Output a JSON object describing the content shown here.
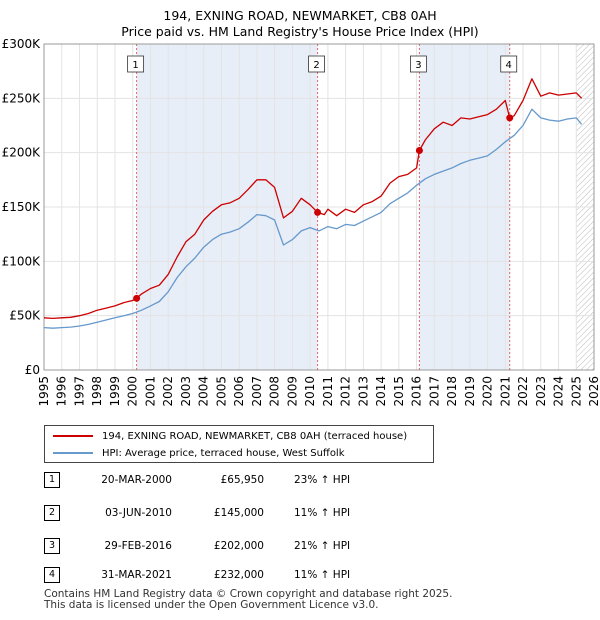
{
  "title_line1": "194, EXNING ROAD, NEWMARKET, CB8 0AH",
  "title_line2": "Price paid vs. HM Land Registry's House Price Index (HPI)",
  "legend": {
    "property": "194, EXNING ROAD, NEWMARKET, CB8 0AH (terraced house)",
    "hpi": "HPI: Average price, terraced house, West Suffolk"
  },
  "colors": {
    "property": "#cc0000",
    "hpi": "#6699cc",
    "shade": "#e8eef8",
    "sale_marker": "#cc0000"
  },
  "sales": [
    {
      "num": "1",
      "date": "20-MAR-2000",
      "price": "£65,950",
      "hpi": "23% ↑ HPI"
    },
    {
      "num": "2",
      "date": "03-JUN-2010",
      "price": "£145,000",
      "hpi": "11% ↑ HPI"
    },
    {
      "num": "3",
      "date": "29-FEB-2016",
      "price": "£202,000",
      "hpi": "21% ↑ HPI"
    },
    {
      "num": "4",
      "date": "31-MAR-2021",
      "price": "£232,000",
      "hpi": "11% ↑ HPI"
    }
  ],
  "footer_line1": "Contains HM Land Registry data © Crown copyright and database right 2025.",
  "footer_line2": "This data is licensed under the Open Government Licence v3.0.",
  "chart_data": {
    "type": "line",
    "xlabel": "",
    "ylabel": "",
    "xlim": [
      1995,
      2026
    ],
    "ylim": [
      0,
      300000
    ],
    "yticks": [
      0,
      50000,
      100000,
      150000,
      200000,
      250000,
      300000
    ],
    "ytick_labels": [
      "£0",
      "£50K",
      "£100K",
      "£150K",
      "£200K",
      "£250K",
      "£300K"
    ],
    "xticks": [
      1995,
      1996,
      1997,
      1998,
      1999,
      2000,
      2001,
      2002,
      2003,
      2004,
      2005,
      2006,
      2007,
      2008,
      2009,
      2010,
      2011,
      2012,
      2013,
      2014,
      2015,
      2016,
      2017,
      2018,
      2019,
      2020,
      2021,
      2022,
      2023,
      2024,
      2025,
      2026
    ],
    "grid": true,
    "legend_position": "below chart",
    "shaded_ranges": [
      [
        2000.22,
        2010.42
      ],
      [
        2016.16,
        2021.25
      ]
    ],
    "future_hatch_from": 2025.0,
    "sale_markers": [
      {
        "label": "1",
        "x": 2000.22,
        "y": 65950
      },
      {
        "label": "2",
        "x": 2010.42,
        "y": 145000
      },
      {
        "label": "3",
        "x": 2016.16,
        "y": 202000
      },
      {
        "label": "4",
        "x": 2021.25,
        "y": 232000
      }
    ],
    "series": [
      {
        "name": "194, EXNING ROAD, NEWMARKET, CB8 0AH (terraced house)",
        "x": [
          1995.0,
          1995.5,
          1996.0,
          1996.5,
          1997.0,
          1997.5,
          1998.0,
          1998.5,
          1999.0,
          1999.5,
          2000.0,
          2000.22,
          2000.5,
          2001.0,
          2001.5,
          2002.0,
          2002.5,
          2003.0,
          2003.5,
          2004.0,
          2004.5,
          2005.0,
          2005.5,
          2006.0,
          2006.5,
          2007.0,
          2007.5,
          2008.0,
          2008.5,
          2009.0,
          2009.5,
          2010.0,
          2010.42,
          2010.8,
          2011.0,
          2011.5,
          2012.0,
          2012.5,
          2013.0,
          2013.5,
          2014.0,
          2014.5,
          2015.0,
          2015.5,
          2016.0,
          2016.16,
          2016.5,
          2017.0,
          2017.5,
          2018.0,
          2018.5,
          2019.0,
          2019.5,
          2020.0,
          2020.5,
          2021.0,
          2021.25,
          2021.5,
          2022.0,
          2022.5,
          2023.0,
          2023.5,
          2024.0,
          2024.5,
          2025.0,
          2025.3
        ],
        "values": [
          48000,
          47500,
          48000,
          48500,
          50000,
          52000,
          55000,
          57000,
          59000,
          62000,
          64000,
          65950,
          70000,
          75000,
          78000,
          88000,
          104000,
          118000,
          125000,
          138000,
          146000,
          152000,
          154000,
          158000,
          166000,
          175000,
          175000,
          168000,
          140000,
          146000,
          158000,
          152000,
          145000,
          143000,
          148000,
          142000,
          148000,
          145000,
          152000,
          155000,
          160000,
          172000,
          178000,
          180000,
          186000,
          202000,
          212000,
          222000,
          228000,
          225000,
          232000,
          231000,
          233000,
          235000,
          240000,
          248000,
          232000,
          234000,
          248000,
          268000,
          252000,
          255000,
          253000,
          254000,
          255000,
          250000
        ]
      },
      {
        "name": "HPI: Average price, terraced house, West Suffolk",
        "x": [
          1995.0,
          1995.5,
          1996.0,
          1996.5,
          1997.0,
          1997.5,
          1998.0,
          1998.5,
          1999.0,
          1999.5,
          2000.0,
          2000.5,
          2001.0,
          2001.5,
          2002.0,
          2002.5,
          2003.0,
          2003.5,
          2004.0,
          2004.5,
          2005.0,
          2005.5,
          2006.0,
          2006.5,
          2007.0,
          2007.5,
          2008.0,
          2008.5,
          2009.0,
          2009.5,
          2010.0,
          2010.5,
          2011.0,
          2011.5,
          2012.0,
          2012.5,
          2013.0,
          2013.5,
          2014.0,
          2014.5,
          2015.0,
          2015.5,
          2016.0,
          2016.5,
          2017.0,
          2017.5,
          2018.0,
          2018.5,
          2019.0,
          2019.5,
          2020.0,
          2020.5,
          2021.0,
          2021.5,
          2022.0,
          2022.5,
          2023.0,
          2023.5,
          2024.0,
          2024.5,
          2025.0,
          2025.3
        ],
        "values": [
          39000,
          38500,
          39000,
          39500,
          40500,
          42000,
          44000,
          46000,
          48000,
          50000,
          52000,
          55000,
          59000,
          63000,
          72000,
          85000,
          95000,
          103000,
          113000,
          120000,
          125000,
          127000,
          130000,
          136000,
          143000,
          142000,
          138000,
          115000,
          120000,
          128000,
          131000,
          128000,
          132000,
          130000,
          134000,
          133000,
          137000,
          141000,
          145000,
          153000,
          158000,
          163000,
          170000,
          176000,
          180000,
          183000,
          186000,
          190000,
          193000,
          195000,
          197000,
          203000,
          210000,
          216000,
          225000,
          240000,
          232000,
          230000,
          229000,
          231000,
          232000,
          226000
        ]
      }
    ]
  }
}
